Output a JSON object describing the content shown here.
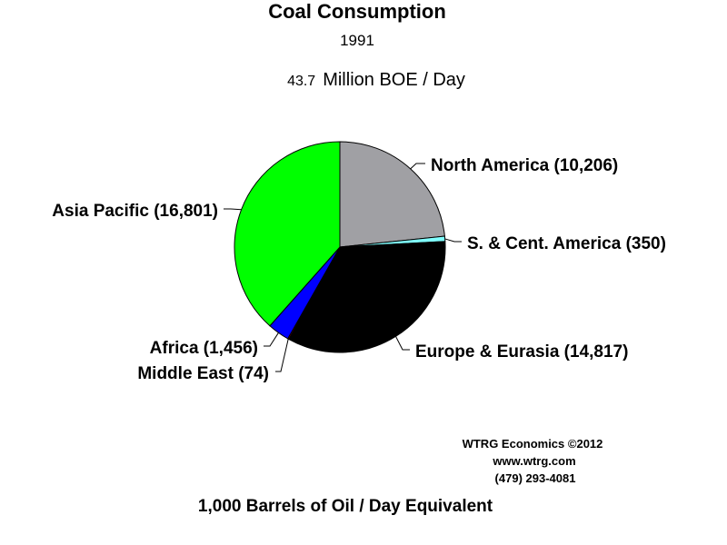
{
  "chart_data": {
    "type": "pie",
    "title": "Coal Consumption",
    "subtitle": "1991",
    "total_value": "43.7",
    "total_unit": "Million BOE / Day",
    "footer": "1,000 Barrels of Oil / Day Equivalent",
    "credits": [
      "WTRG Economics  ©2012",
      "www.wtrg.com",
      "(479) 293-4081"
    ],
    "start_angle_deg": 0,
    "direction": "clockwise",
    "slices": [
      {
        "name": "North America",
        "value": 10206,
        "label": "North America (10,206)",
        "color": "#a0a0a4"
      },
      {
        "name": "S. & Cent. America",
        "value": 350,
        "label": "S. & Cent. America (350)",
        "color": "#80ffff"
      },
      {
        "name": "Europe & Eurasia",
        "value": 14817,
        "label": "Europe & Eurasia (14,817)",
        "color": "#000000"
      },
      {
        "name": "Middle East",
        "value": 74,
        "label": "Middle East (74)",
        "color": "#ff0000"
      },
      {
        "name": "Africa",
        "value": 1456,
        "label": "Africa (1,456)",
        "color": "#0000ff"
      },
      {
        "name": "Asia Pacific",
        "value": 16801,
        "label": "Asia Pacific (16,801)",
        "color": "#00ff00"
      }
    ]
  }
}
